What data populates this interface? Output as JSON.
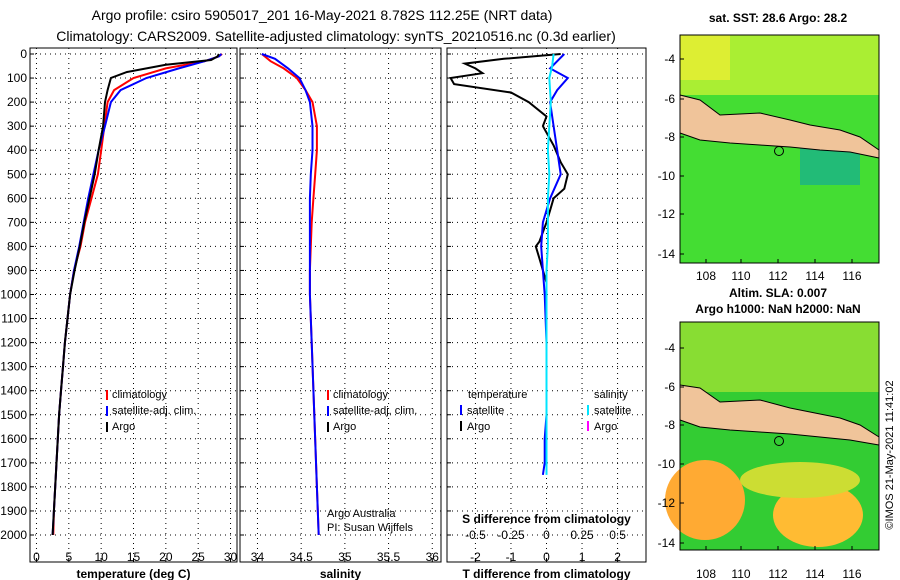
{
  "header": {
    "line1": "Argo profile: csiro 5905017_201 16-May-2021 8.782S 112.25E (NRT data)",
    "line2": "Climatology: CARS2009. Satellite-adjusted climatology: synTS_20210516.nc (0.3d earlier)"
  },
  "depth_ticks": [
    "0",
    "100",
    "200",
    "300",
    "400",
    "500",
    "600",
    "700",
    "800",
    "900",
    "1000",
    "1100",
    "1200",
    "1300",
    "1400",
    "1500",
    "1600",
    "1700",
    "1800",
    "1900",
    "2000"
  ],
  "colors": {
    "climatology": "#ff0000",
    "satellite": "#0000ff",
    "argo": "#000000",
    "sal_satellite": "#00e5ff",
    "sal_argo": "#ff00ff",
    "land": "#f0c49a"
  },
  "legend": {
    "climatology": "climatology",
    "satellite_adj": "satellite-adj. clim.",
    "argo": "Argo",
    "temperature": "temperature",
    "salinity": "salinity",
    "satellite": "satellite"
  },
  "credit": {
    "line1": "Argo Australia",
    "line2": "PI: Susan Wijffels"
  },
  "diff_panel": {
    "s_title": "S difference from climatology",
    "t_title": "T difference from climatology"
  },
  "maps": {
    "sst_title": "sat. SST: 28.6 Argo: 28.2",
    "altim_title": "Altim. SLA: 0.007",
    "argo_h_title": "Argo h1000: NaN h2000: NaN",
    "lat_ticks": [
      "-4",
      "-6",
      "-8",
      "-10",
      "-12",
      "-14"
    ],
    "lon_ticks": [
      "108",
      "110",
      "112",
      "114",
      "116"
    ]
  },
  "timestamp": "©IMOS 21-May-2021 11:41:02",
  "chart_data": [
    {
      "type": "line",
      "title": "",
      "xlabel": "temperature (deg C)",
      "ylabel": "depth",
      "x_ticks": [
        "0",
        "5",
        "10",
        "15",
        "20",
        "25",
        "30"
      ],
      "xlim": [
        -1,
        31
      ],
      "ylim": [
        2050,
        -20
      ],
      "series": [
        {
          "name": "climatology",
          "points": [
            [
              28.7,
              0
            ],
            [
              28.2,
              10
            ],
            [
              26,
              30
            ],
            [
              20,
              60
            ],
            [
              15,
              100
            ],
            [
              12,
              150
            ],
            [
              11,
              200
            ],
            [
              10.5,
              300
            ],
            [
              10,
              400
            ],
            [
              9.5,
              500
            ],
            [
              8.5,
              600
            ],
            [
              7.5,
              700
            ],
            [
              6.8,
              800
            ],
            [
              5.8,
              900
            ],
            [
              5.2,
              1000
            ],
            [
              4.8,
              1100
            ],
            [
              4.4,
              1200
            ],
            [
              4.1,
              1300
            ],
            [
              3.8,
              1400
            ],
            [
              3.5,
              1500
            ],
            [
              3.3,
              1600
            ],
            [
              3.1,
              1700
            ],
            [
              2.9,
              1800
            ],
            [
              2.7,
              1900
            ],
            [
              2.6,
              2000
            ]
          ]
        },
        {
          "name": "satellite-adj. clim.",
          "points": [
            [
              28.6,
              0
            ],
            [
              28.2,
              10
            ],
            [
              26,
              30
            ],
            [
              22,
              60
            ],
            [
              17,
              100
            ],
            [
              13,
              150
            ],
            [
              11.5,
              200
            ],
            [
              10.6,
              300
            ],
            [
              9.6,
              400
            ],
            [
              8.8,
              500
            ],
            [
              8,
              600
            ],
            [
              7.3,
              700
            ],
            [
              6.6,
              800
            ],
            [
              5.8,
              900
            ],
            [
              5.2,
              1000
            ],
            [
              4.8,
              1100
            ],
            [
              4.4,
              1200
            ],
            [
              4.1,
              1300
            ],
            [
              3.8,
              1400
            ],
            [
              3.5,
              1500
            ],
            [
              3.3,
              1600
            ],
            [
              3.1,
              1700
            ],
            [
              2.9,
              1800
            ],
            [
              2.7,
              1900
            ],
            [
              2.5,
              2000
            ]
          ]
        },
        {
          "name": "Argo",
          "points": [
            [
              28.2,
              0
            ],
            [
              28,
              10
            ],
            [
              27,
              25
            ],
            [
              20,
              45
            ],
            [
              14,
              75
            ],
            [
              11.5,
              100
            ],
            [
              11,
              150
            ],
            [
              10.6,
              200
            ],
            [
              10.3,
              300
            ],
            [
              9.6,
              400
            ],
            [
              9,
              500
            ],
            [
              8.2,
              600
            ],
            [
              7.4,
              700
            ],
            [
              6.7,
              800
            ],
            [
              5.9,
              900
            ],
            [
              5.2,
              1000
            ],
            [
              4.8,
              1100
            ],
            [
              4.4,
              1200
            ],
            [
              4.1,
              1300
            ],
            [
              3.8,
              1400
            ],
            [
              3.5,
              1500
            ],
            [
              3.3,
              1600
            ],
            [
              3.1,
              1700
            ],
            [
              2.9,
              1800
            ],
            [
              2.7,
              1900
            ],
            [
              2.5,
              2000
            ]
          ]
        }
      ]
    },
    {
      "type": "line",
      "title": "",
      "xlabel": "salinity",
      "ylabel": "depth",
      "x_ticks": [
        "34",
        "34.5",
        "35",
        "35.5",
        "36"
      ],
      "xlim": [
        33.8,
        36.1
      ],
      "ylim": [
        2050,
        -20
      ],
      "series": [
        {
          "name": "climatology",
          "points": [
            [
              34.05,
              0
            ],
            [
              34.15,
              30
            ],
            [
              34.3,
              60
            ],
            [
              34.45,
              100
            ],
            [
              34.55,
              150
            ],
            [
              34.63,
              200
            ],
            [
              34.68,
              300
            ],
            [
              34.68,
              400
            ],
            [
              34.66,
              500
            ],
            [
              34.64,
              600
            ],
            [
              34.62,
              700
            ],
            [
              34.61,
              800
            ],
            [
              34.6,
              900
            ],
            [
              34.6,
              1000
            ],
            [
              34.62,
              1200
            ],
            [
              34.65,
              1500
            ],
            [
              34.68,
              1800
            ],
            [
              34.7,
              2000
            ]
          ]
        },
        {
          "name": "satellite-adj. clim.",
          "points": [
            [
              34.05,
              0
            ],
            [
              34.2,
              20
            ],
            [
              34.35,
              60
            ],
            [
              34.48,
              100
            ],
            [
              34.55,
              150
            ],
            [
              34.6,
              200
            ],
            [
              34.63,
              300
            ],
            [
              34.63,
              400
            ],
            [
              34.61,
              500
            ],
            [
              34.6,
              600
            ],
            [
              34.6,
              700
            ],
            [
              34.6,
              800
            ],
            [
              34.6,
              900
            ],
            [
              34.6,
              1000
            ],
            [
              34.62,
              1200
            ],
            [
              34.65,
              1500
            ],
            [
              34.68,
              1800
            ],
            [
              34.7,
              2000
            ]
          ]
        },
        {
          "name": "Argo",
          "points": []
        }
      ]
    },
    {
      "type": "line",
      "title": "",
      "xlabel": "T difference from climatology",
      "ylabel": "depth",
      "x_ticks": [
        "-2",
        "-1",
        "0",
        "1",
        "2"
      ],
      "xlim": [
        -2.8,
        2.8
      ],
      "x2_label": "S difference from climatology",
      "x2_ticks": [
        "-0.5",
        "-0.25",
        "0",
        "0.25",
        "0.5"
      ],
      "x2lim": [
        -0.7,
        0.7
      ],
      "ylim": [
        2050,
        -20
      ],
      "series": [
        {
          "name": "temperature Argo",
          "axis": "T",
          "points": [
            [
              0.4,
              0
            ],
            [
              -1.2,
              20
            ],
            [
              -2.3,
              40
            ],
            [
              -2,
              60
            ],
            [
              -1.8,
              80
            ],
            [
              -2.7,
              100
            ],
            [
              -2.6,
              125
            ],
            [
              -1,
              160
            ],
            [
              -0.5,
              200
            ],
            [
              0,
              260
            ],
            [
              -0.1,
              300
            ],
            [
              0.2,
              380
            ],
            [
              0.4,
              450
            ],
            [
              0.6,
              500
            ],
            [
              0.5,
              560
            ],
            [
              0.2,
              600
            ],
            [
              0.1,
              650
            ],
            [
              0,
              700
            ],
            [
              -0.2,
              780
            ],
            [
              -0.3,
              800
            ],
            [
              -0.2,
              850
            ],
            [
              -0.1,
              900
            ],
            [
              0,
              950
            ],
            [
              0,
              1000
            ],
            [
              0,
              1050
            ]
          ]
        },
        {
          "name": "temperature satellite",
          "axis": "T",
          "points": [
            [
              0.5,
              0
            ],
            [
              0.3,
              30
            ],
            [
              0.1,
              60
            ],
            [
              0.6,
              100
            ],
            [
              0.3,
              150
            ],
            [
              0.1,
              200
            ],
            [
              0.2,
              300
            ],
            [
              0.3,
              400
            ],
            [
              0.4,
              500
            ],
            [
              0.1,
              600
            ],
            [
              -0.1,
              700
            ],
            [
              -0.15,
              800
            ],
            [
              -0.1,
              900
            ],
            [
              -0.05,
              1000
            ],
            [
              0,
              1200
            ],
            [
              0,
              1400
            ],
            [
              0,
              1500
            ],
            [
              -0.05,
              1600
            ],
            [
              -0.05,
              1700
            ],
            [
              -0.1,
              1750
            ]
          ]
        },
        {
          "name": "salinity satellite",
          "axis": "S",
          "points": [
            [
              0.05,
              0
            ],
            [
              0.04,
              50
            ],
            [
              0.02,
              100
            ],
            [
              0.03,
              200
            ],
            [
              0.02,
              300
            ],
            [
              0.01,
              400
            ],
            [
              0.02,
              500
            ],
            [
              0.01,
              600
            ],
            [
              0.01,
              700
            ],
            [
              0.01,
              800
            ],
            [
              0,
              900
            ],
            [
              0,
              1000
            ],
            [
              0,
              1200
            ],
            [
              0,
              1400
            ],
            [
              0,
              1600
            ],
            [
              0,
              1750
            ]
          ]
        }
      ]
    }
  ]
}
